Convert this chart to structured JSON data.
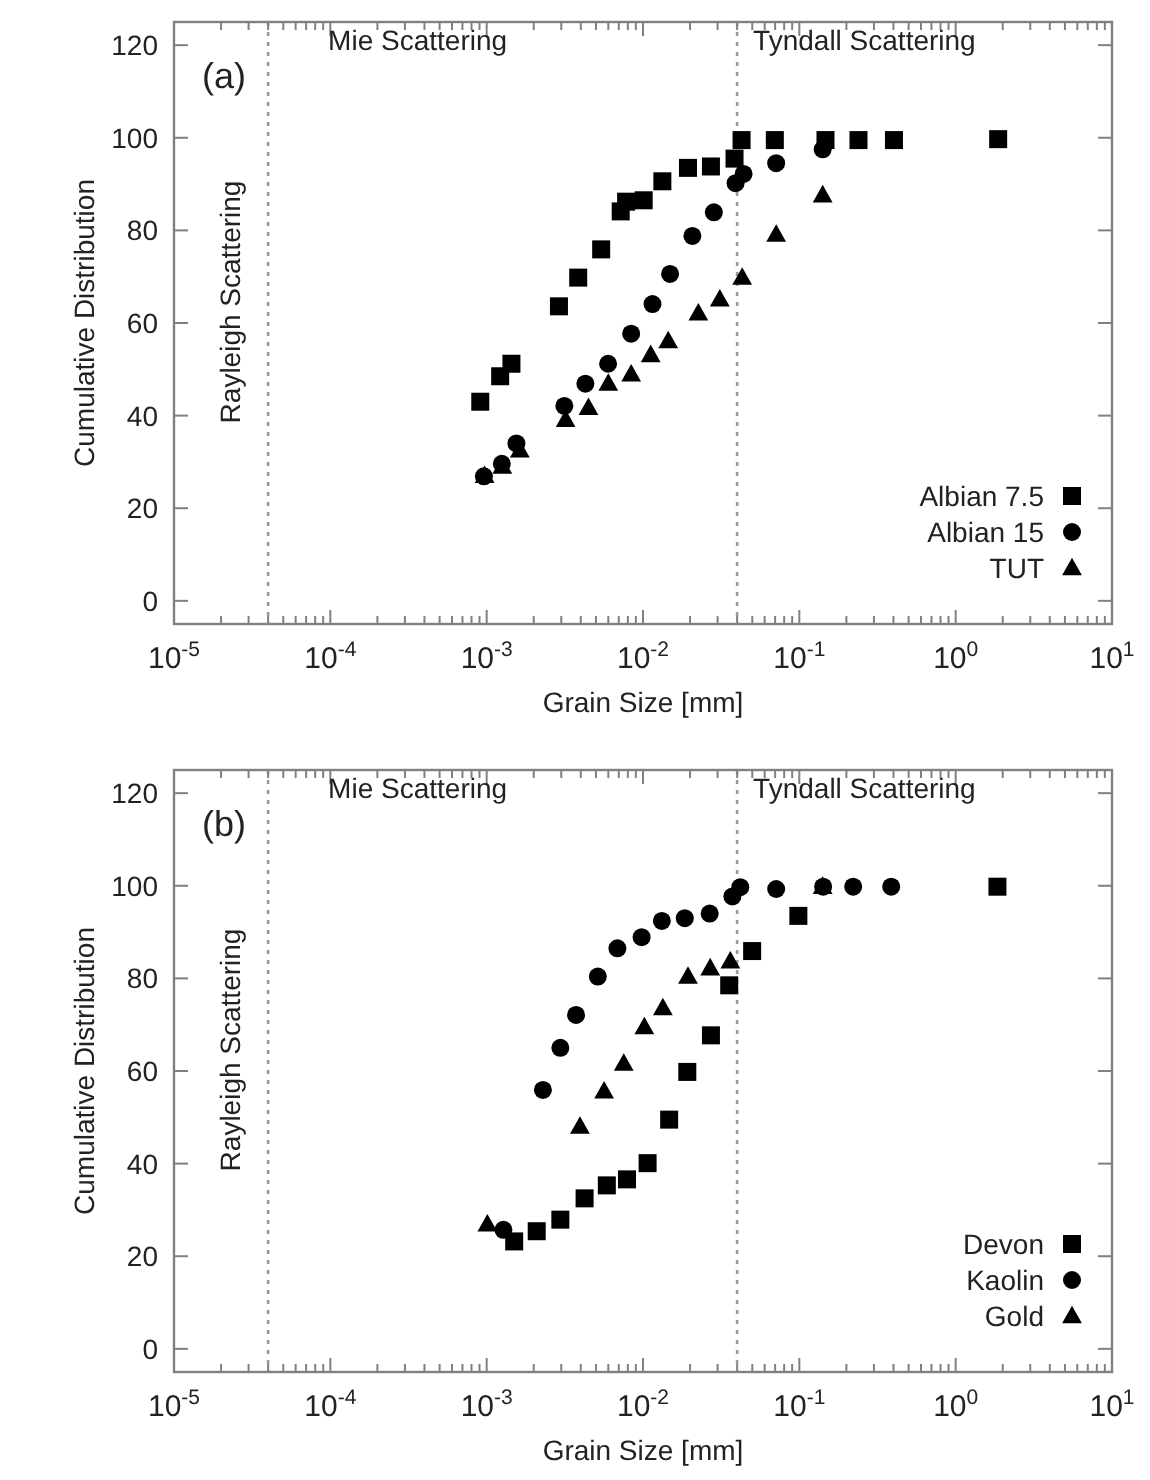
{
  "chart_data": [
    {
      "type": "scatter",
      "xlabel": "Grain Size [mm]",
      "ylabel": "Cumulative Distribution",
      "log": "x",
      "legend": "bottom right",
      "grid": false,
      "xlim": [
        1e-05,
        10
      ],
      "ylim": [
        -5,
        125
      ],
      "xticks": [
        {
          "value": 1e-05,
          "label": "10$^{-5}$"
        },
        {
          "value": 0.0001,
          "label": "10$^{-4}$"
        },
        {
          "value": 0.001,
          "label": "10$^{-3}$"
        },
        {
          "value": 0.01,
          "label": "10$^{-2}$"
        },
        {
          "value": 0.1,
          "label": "10$^{-1}$"
        },
        {
          "value": 1,
          "label": "10$^{0}$"
        },
        {
          "value": 10,
          "label": "10$^{1}$"
        }
      ],
      "yticks": [
        0,
        20,
        40,
        60,
        80,
        100,
        120
      ],
      "ref_lines": [
        {
          "axis": "x",
          "value": 4e-05,
          "label": null,
          "color": "#999999",
          "line_style": "dotted"
        },
        {
          "axis": "x",
          "value": 0.04,
          "label": null,
          "color": "#999999",
          "line_style": "dotted"
        }
      ],
      "annotations": [
        "(a)",
        "Mie Scattering",
        "Tyndall Scattering",
        "Rayleigh Scattering"
      ],
      "series": [
        {
          "name": "Albian 7.5",
          "color": "#000000",
          "marker": "square",
          "x": [
            0.00091,
            0.00122,
            0.00144,
            0.0029,
            0.00385,
            0.0054,
            0.0072,
            0.0078,
            0.0101,
            0.0133,
            0.0194,
            0.0272,
            0.0385,
            0.0427,
            0.0697,
            0.147,
            0.239,
            0.403,
            1.87
          ],
          "values": [
            43,
            48.5,
            51.2,
            63.6,
            69.8,
            75.9,
            84.1,
            86.2,
            86.5,
            90.6,
            93.5,
            93.8,
            95.5,
            99.5,
            99.5,
            99.5,
            99.5,
            99.5,
            99.7
          ]
        },
        {
          "name": "Albian 15",
          "color": "#000000",
          "marker": "circle",
          "x": [
            0.00096,
            0.00125,
            0.00155,
            0.00314,
            0.00428,
            0.00598,
            0.0084,
            0.0115,
            0.0149,
            0.0207,
            0.0284,
            0.0391,
            0.044,
            0.0711,
            0.141
          ],
          "values": [
            26.9,
            29.6,
            34,
            42.1,
            46.9,
            51.2,
            57.7,
            64.1,
            70.6,
            78.8,
            83.9,
            90.2,
            92.2,
            94.5,
            97.5
          ]
        },
        {
          "name": "TUT",
          "color": "#000000",
          "marker": "triangle",
          "x": [
            0.00097,
            0.00126,
            0.00163,
            0.0032,
            0.00448,
            0.006,
            0.0084,
            0.0112,
            0.0145,
            0.0226,
            0.031,
            0.0431,
            0.0711,
            0.141
          ],
          "values": [
            27,
            29,
            32.5,
            39.1,
            41.7,
            46.9,
            48.9,
            53.1,
            56.1,
            62.1,
            65.1,
            69.8,
            79.1,
            87.6
          ]
        }
      ]
    },
    {
      "type": "scatter",
      "xlabel": "Grain Size [mm]",
      "ylabel": "Cumulative Distribution",
      "log": "x",
      "legend": "bottom right",
      "grid": false,
      "xlim": [
        1e-05,
        10
      ],
      "ylim": [
        -5,
        125
      ],
      "xticks": [
        {
          "value": 1e-05,
          "label": "10$^{-5}$"
        },
        {
          "value": 0.0001,
          "label": "10$^{-4}$"
        },
        {
          "value": 0.001,
          "label": "10$^{-3}$"
        },
        {
          "value": 0.01,
          "label": "10$^{-2}$"
        },
        {
          "value": 0.1,
          "label": "10$^{-1}$"
        },
        {
          "value": 1,
          "label": "10$^{0}$"
        },
        {
          "value": 10,
          "label": "10$^{1}$"
        }
      ],
      "yticks": [
        0,
        20,
        40,
        60,
        80,
        100,
        120
      ],
      "ref_lines": [
        {
          "axis": "x",
          "value": 4e-05,
          "label": null,
          "color": "#999999",
          "line_style": "dotted"
        },
        {
          "axis": "x",
          "value": 0.04,
          "label": null,
          "color": "#999999",
          "line_style": "dotted"
        }
      ],
      "annotations": [
        "(b)",
        "Mie Scattering",
        "Tyndall Scattering",
        "Rayleigh Scattering"
      ],
      "series": [
        {
          "name": "Devon",
          "color": "#000000",
          "marker": "square",
          "x": [
            0.0015,
            0.00209,
            0.00296,
            0.00423,
            0.00587,
            0.0079,
            0.0107,
            0.0147,
            0.0192,
            0.0272,
            0.0356,
            0.0499,
            0.0986,
            1.85
          ],
          "values": [
            23.2,
            25.4,
            27.9,
            32.5,
            35.3,
            36.6,
            40.1,
            49.5,
            59.8,
            67.7,
            78.5,
            85.9,
            93.5,
            99.8
          ]
        },
        {
          "name": "Kaolin",
          "color": "#000000",
          "marker": "circle",
          "x": [
            0.00128,
            0.00229,
            0.00296,
            0.00373,
            0.00514,
            0.00686,
            0.0098,
            0.0132,
            0.0185,
            0.0267,
            0.0373,
            0.0419,
            0.0711,
            0.142,
            0.221,
            0.387
          ],
          "values": [
            25.7,
            55.9,
            65,
            72.1,
            80.4,
            86.5,
            88.9,
            92.4,
            93,
            94,
            97.7,
            99.7,
            99.3,
            99.8,
            99.8,
            99.8
          ]
        },
        {
          "name": "Gold",
          "color": "#000000",
          "marker": "triangle",
          "x": [
            0.00101,
            0.00395,
            0.00564,
            0.00753,
            0.0102,
            0.0134,
            0.0194,
            0.0269,
            0.0362,
            0.141
          ],
          "values": [
            26.9,
            48,
            55.6,
            61.6,
            69.5,
            73.6,
            80.4,
            82.2,
            83.7,
            99.8
          ]
        }
      ]
    }
  ]
}
